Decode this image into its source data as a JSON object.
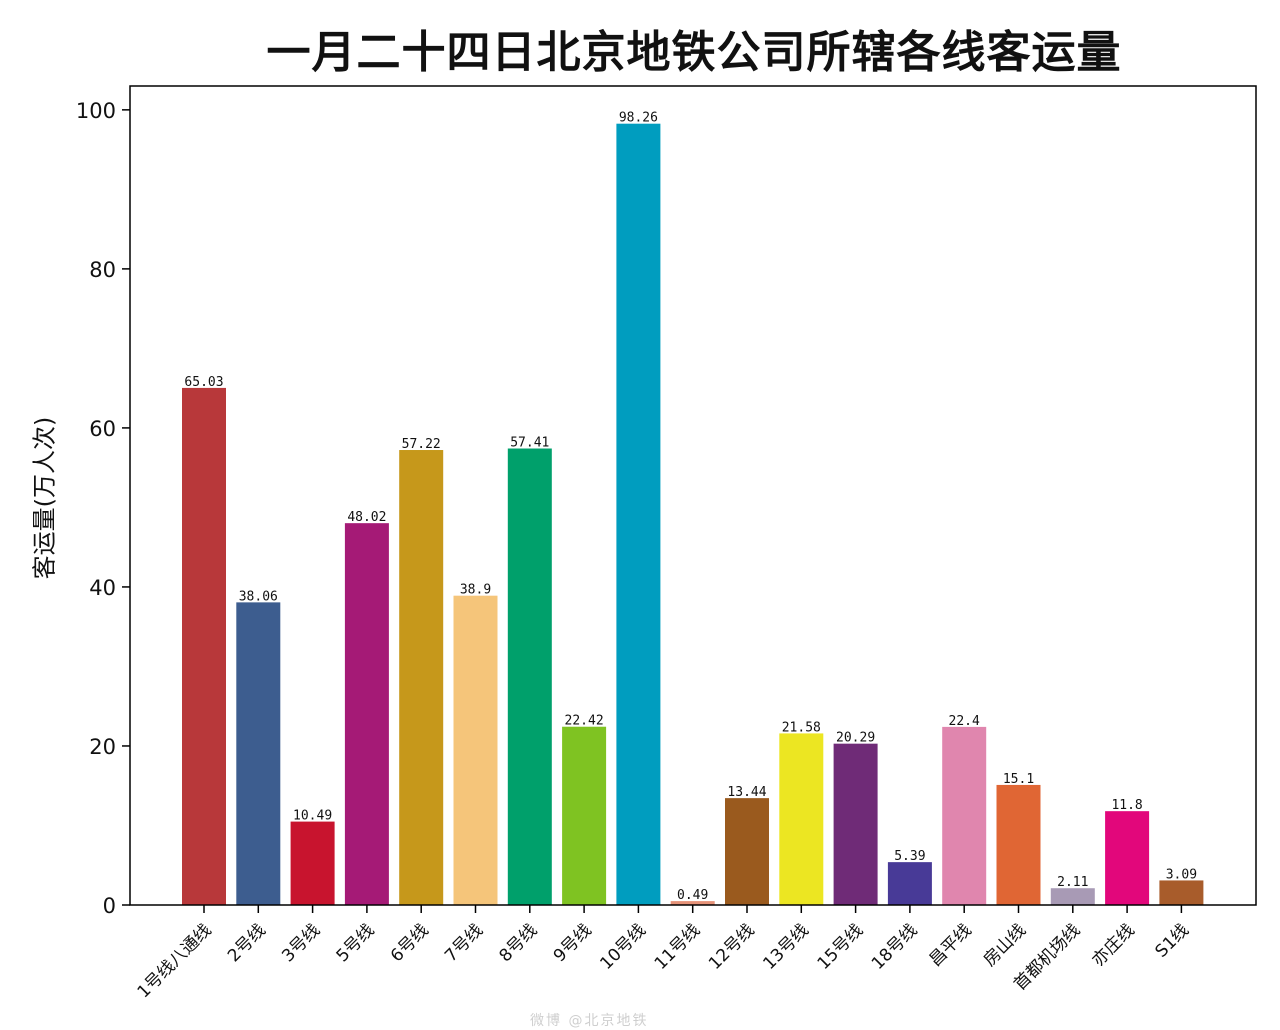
{
  "chart_data": {
    "type": "bar",
    "title": "一月二十四日北京地铁公司所辖各线客运量",
    "xlabel": "",
    "ylabel": "客运量(万人次)",
    "ylim": [
      0,
      103
    ],
    "yticks": [
      0,
      20,
      40,
      60,
      80,
      100
    ],
    "categories": [
      "1号线八通线",
      "2号线",
      "3号线",
      "5号线",
      "6号线",
      "7号线",
      "8号线",
      "9号线",
      "10号线",
      "11号线",
      "12号线",
      "13号线",
      "15号线",
      "18号线",
      "昌平线",
      "房山线",
      "首都机场线",
      "亦庄线",
      "S1线"
    ],
    "values": [
      65.03,
      38.06,
      10.49,
      48.02,
      57.22,
      38.9,
      57.41,
      22.42,
      98.26,
      0.49,
      13.44,
      21.58,
      20.29,
      5.39,
      22.4,
      15.1,
      2.11,
      11.8,
      3.09
    ],
    "value_labels": [
      "65.03",
      "38.06",
      "10.49",
      "48.02",
      "57.22",
      "38.9",
      "57.41",
      "22.42",
      "98.26",
      "0.49",
      "13.44",
      "21.58",
      "20.29",
      "5.39",
      "22.4",
      "15.1",
      "2.11",
      "11.8",
      "3.09"
    ],
    "colors": [
      "#b8383a",
      "#3d5d8f",
      "#c8142e",
      "#a51a76",
      "#c6981b",
      "#f5c57a",
      "#00a06b",
      "#7fc322",
      "#009dbf",
      "#e59278",
      "#9a5a1e",
      "#ece622",
      "#6f2b77",
      "#483a97",
      "#e086ae",
      "#e06634",
      "#a89ab5",
      "#e2077b",
      "#a85c2b"
    ],
    "grid": false,
    "legend": "none"
  },
  "watermark": "微博 @北京地铁"
}
